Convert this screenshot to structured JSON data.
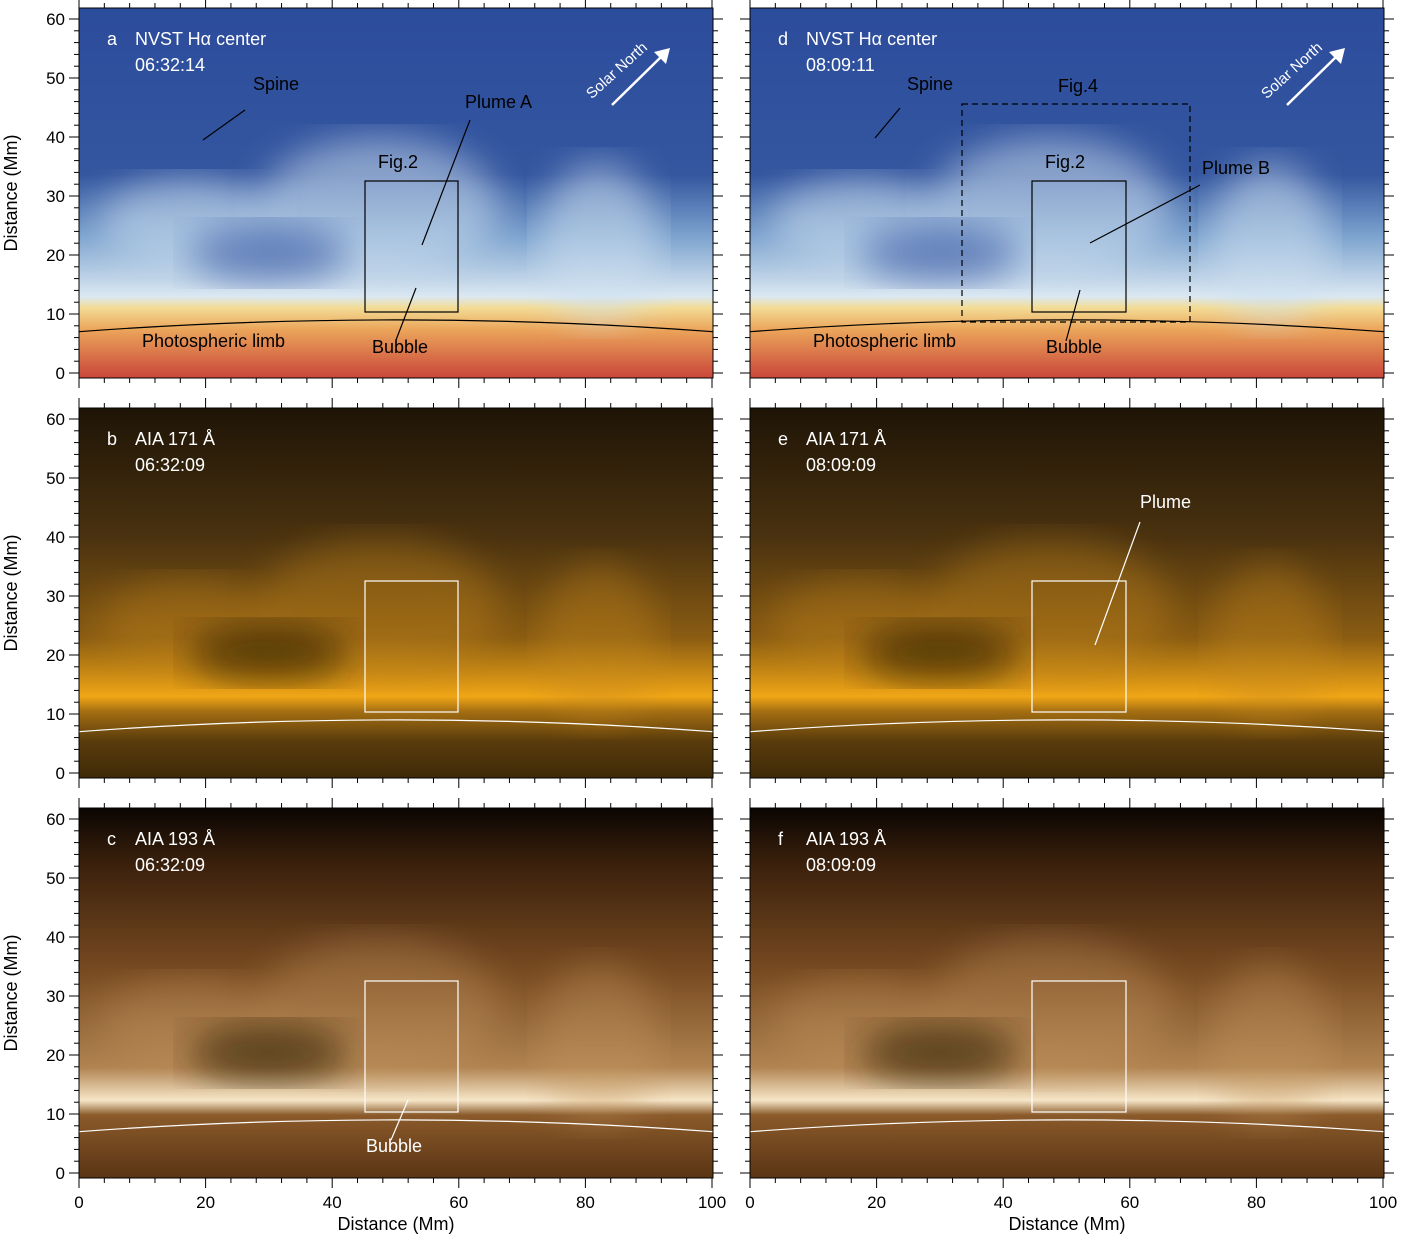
{
  "axis_title": "Distance (Mm)",
  "yticks": [
    0,
    10,
    20,
    30,
    40,
    50,
    60
  ],
  "xticks": [
    0,
    20,
    40,
    60,
    80,
    100
  ],
  "panels": [
    {
      "letter": "a",
      "instrument": "NVST Hα center",
      "time": "06:32:14",
      "annotations": [
        "Spine",
        "Plume A",
        "Fig.2",
        "Bubble",
        "Photospheric limb",
        "Solar North"
      ]
    },
    {
      "letter": "b",
      "instrument": "AIA 171 Å",
      "time": "06:32:09",
      "annotations": []
    },
    {
      "letter": "c",
      "instrument": "AIA 193 Å",
      "time": "06:32:09",
      "annotations": [
        "Bubble"
      ]
    },
    {
      "letter": "d",
      "instrument": "NVST Hα center",
      "time": "08:09:11",
      "annotations": [
        "Spine",
        "Fig.4",
        "Fig.2",
        "Plume B",
        "Bubble",
        "Photospheric limb",
        "Solar North"
      ]
    },
    {
      "letter": "e",
      "instrument": "AIA 171 Å",
      "time": "08:09:09",
      "annotations": [
        "Plume"
      ]
    },
    {
      "letter": "f",
      "instrument": "AIA 193 Å",
      "time": "08:09:09",
      "annotations": []
    }
  ]
}
